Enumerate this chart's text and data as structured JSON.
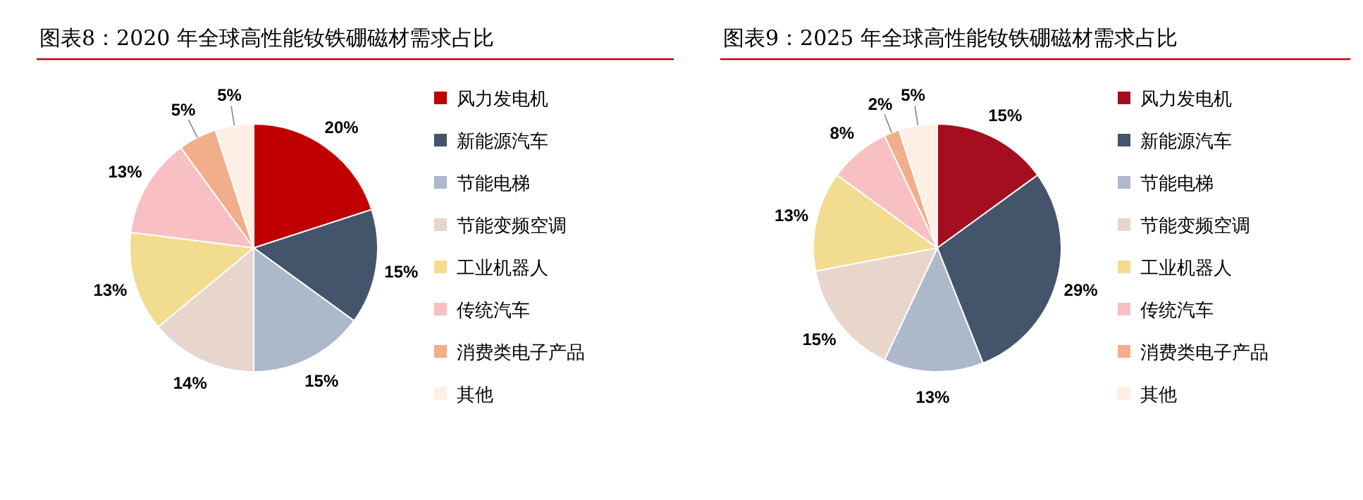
{
  "chart_data": [
    {
      "type": "pie",
      "title": "图表8：2020 年全球高性能钕铁硼磁材需求占比",
      "categories": [
        "风力发电机",
        "新能源汽车",
        "节能电梯",
        "节能变频空调",
        "工业机器人",
        "传统汽车",
        "消费类电子产品",
        "其他"
      ],
      "values": [
        20,
        15,
        15,
        14,
        13,
        13,
        5,
        5
      ],
      "value_labels": [
        "20%",
        "15%",
        "15%",
        "14%",
        "13%",
        "13%",
        "5%",
        "5%"
      ],
      "colors": [
        "#c00000",
        "#44546a",
        "#adb9ca",
        "#e8d5cb",
        "#f2dc8f",
        "#f9c0c4",
        "#f2ae8a",
        "#fdefe4"
      ],
      "legend": "right"
    },
    {
      "type": "pie",
      "title": "图表9：2025 年全球高性能钕铁硼磁材需求占比",
      "categories": [
        "风力发电机",
        "新能源汽车",
        "节能电梯",
        "节能变频空调",
        "工业机器人",
        "传统汽车",
        "消费类电子产品",
        "其他"
      ],
      "values": [
        15,
        29,
        13,
        15,
        13,
        8,
        2,
        5
      ],
      "value_labels": [
        "15%",
        "29%",
        "13%",
        "15%",
        "13%",
        "8%",
        "2%",
        "5%"
      ],
      "colors": [
        "#a50e1f",
        "#44546a",
        "#adb9ca",
        "#e8d5cb",
        "#f2dc8f",
        "#f9c0c4",
        "#f2ae8a",
        "#fdefe4"
      ],
      "legend": "right"
    }
  ]
}
